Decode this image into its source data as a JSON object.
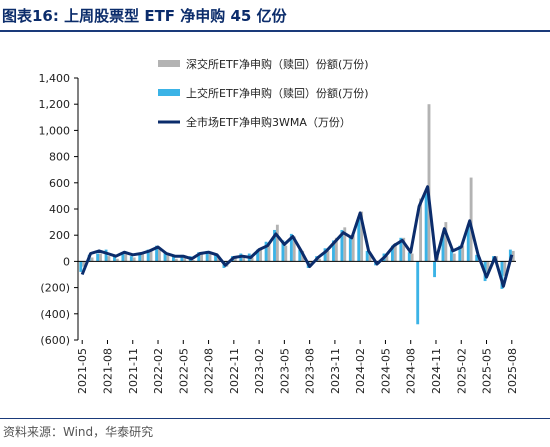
{
  "header": {
    "title": "图表16:  上周股票型 ETF 净申购 45 亿份"
  },
  "footer": {
    "source": "资料来源：Wind，华泰研究"
  },
  "colors": {
    "sz_bar": "#b3b3b3",
    "sh_bar": "#3bb3e6",
    "wma_line": "#0b2c6b",
    "title": "#0b2c6b"
  },
  "chart_data": {
    "type": "bar",
    "title": "",
    "xlabel": "",
    "ylabel": "",
    "ylim": [
      -600,
      1400
    ],
    "yticks": [
      -600,
      -400,
      -200,
      0,
      200,
      400,
      600,
      800,
      1000,
      1200,
      1400
    ],
    "ytick_labels": [
      "(600)",
      "(400)",
      "(200)",
      "0",
      "200",
      "400",
      "600",
      "800",
      "1,000",
      "1,200",
      "1,400"
    ],
    "xticks": [
      "2021-05",
      "2021-08",
      "2021-11",
      "2022-02",
      "2022-05",
      "2022-08",
      "2022-11",
      "2023-02",
      "2023-05",
      "2023-08",
      "2023-11",
      "2024-02",
      "2024-05",
      "2024-08",
      "2024-11",
      "2025-02",
      "2025-05",
      "2025-08"
    ],
    "legend": [
      "深交所ETF净申购（赎回）份额(万份)",
      "上交所ETF净申购（赎回）份额(万份)",
      "全市场ETF净申购3WMA（万份）"
    ],
    "legend_position": "top-right",
    "grid": false,
    "x_months": [
      "2021-05",
      "2021-06",
      "2021-07",
      "2021-08",
      "2021-09",
      "2021-10",
      "2021-11",
      "2021-12",
      "2022-01",
      "2022-02",
      "2022-03",
      "2022-04",
      "2022-05",
      "2022-06",
      "2022-07",
      "2022-08",
      "2022-09",
      "2022-10",
      "2022-11",
      "2022-12",
      "2023-01",
      "2023-02",
      "2023-03",
      "2023-04",
      "2023-05",
      "2023-06",
      "2023-07",
      "2023-08",
      "2023-09",
      "2023-10",
      "2023-11",
      "2023-12",
      "2024-01",
      "2024-02",
      "2024-03",
      "2024-04",
      "2024-05",
      "2024-06",
      "2024-07",
      "2024-08",
      "2024-09",
      "2024-10",
      "2024-11",
      "2024-12",
      "2025-01",
      "2025-02",
      "2025-03",
      "2025-04",
      "2025-05",
      "2025-06",
      "2025-07",
      "2025-08"
    ],
    "series": [
      {
        "name": "深交所ETF净申购（赎回）份额(万份)",
        "values": [
          -40,
          30,
          60,
          40,
          20,
          70,
          30,
          60,
          80,
          100,
          60,
          20,
          40,
          10,
          60,
          70,
          40,
          -40,
          40,
          30,
          30,
          100,
          130,
          280,
          120,
          190,
          80,
          -30,
          20,
          80,
          180,
          260,
          200,
          380,
          60,
          -20,
          40,
          140,
          180,
          60,
          480,
          1200,
          40,
          300,
          60,
          120,
          640,
          30,
          -80,
          40,
          -110,
          80
        ]
      },
      {
        "name": "上交所ETF净申购（赎回）份额(万份)",
        "values": [
          -80,
          50,
          60,
          90,
          40,
          70,
          40,
          60,
          90,
          120,
          70,
          40,
          50,
          40,
          70,
          80,
          60,
          -50,
          40,
          60,
          60,
          90,
          150,
          240,
          160,
          210,
          90,
          -50,
          40,
          100,
          160,
          240,
          190,
          340,
          80,
          -30,
          60,
          120,
          180,
          70,
          -480,
          520,
          -120,
          210,
          90,
          120,
          280,
          50,
          -150,
          40,
          -210,
          90
        ]
      },
      {
        "name": "全市场ETF净申购3WMA（万份）",
        "values": [
          -100,
          60,
          80,
          60,
          40,
          70,
          50,
          60,
          80,
          110,
          60,
          40,
          40,
          20,
          60,
          70,
          50,
          -30,
          30,
          40,
          30,
          90,
          120,
          210,
          130,
          190,
          80,
          -40,
          30,
          80,
          150,
          220,
          180,
          370,
          80,
          -20,
          40,
          120,
          160,
          70,
          420,
          570,
          10,
          250,
          80,
          110,
          310,
          50,
          -120,
          30,
          -190,
          50
        ]
      }
    ]
  }
}
